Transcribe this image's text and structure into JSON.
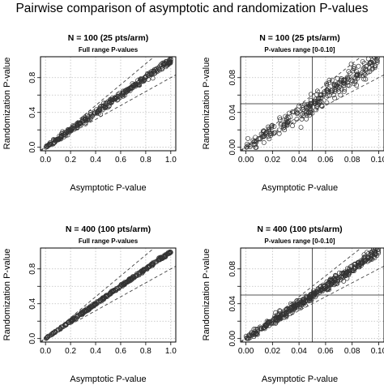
{
  "title": "Pairwise comparison of asymptotic and randomization P-values",
  "colors": {
    "points": "#333333",
    "grid": "#bdbdbd",
    "frame": "#000000",
    "reference_lines": "#444444"
  },
  "chart_data": [
    {
      "type": "scatter",
      "title": "N = 100 (25 pts/arm)",
      "subtitle": "Full range P-values",
      "xlabel": "Asymptotic P-value",
      "ylabel": "Randomization P-value",
      "xlim": [
        0,
        1.0
      ],
      "ylim": [
        0,
        1.0
      ],
      "xticks": [
        0.0,
        0.2,
        0.4,
        0.6,
        0.8,
        1.0
      ],
      "xtick_labels": [
        "0.0",
        "0.2",
        "0.4",
        "0.6",
        "0.8",
        "1.0"
      ],
      "yticks": [
        0.0,
        0.2,
        0.4,
        0.6,
        0.8
      ],
      "ytick_labels": [
        "0.0",
        "0.4",
        "0.8"
      ],
      "ytick_labeled": [
        0.0,
        0.4,
        0.8
      ],
      "grid": true,
      "reference_lines": {
        "bands": [
          [
            1.2,
            0
          ],
          [
            0.8,
            0
          ]
        ],
        "vline": null,
        "hline": null
      },
      "series": [
        {
          "x_range": [
            0,
            1.0
          ],
          "count": 320,
          "trend": 1.0,
          "spread": 0.018
        }
      ]
    },
    {
      "type": "scatter",
      "title": "N = 100 (25 pts/arm)",
      "subtitle": "P-values range [0-0.10]",
      "xlabel": "Asymptotic P-value",
      "ylabel": "Randomization P-value",
      "xlim": [
        0,
        0.1
      ],
      "ylim": [
        0,
        0.1
      ],
      "xticks": [
        0.0,
        0.02,
        0.04,
        0.06,
        0.08,
        0.1
      ],
      "xtick_labels": [
        "0.00",
        "0.02",
        "0.04",
        "0.06",
        "0.08",
        "0.10"
      ],
      "yticks": [
        0.0,
        0.02,
        0.04,
        0.06,
        0.08
      ],
      "ytick_labels": [
        "0.00",
        "0.04",
        "0.08"
      ],
      "ytick_labeled": [
        0.0,
        0.04,
        0.08
      ],
      "grid": true,
      "reference_lines": {
        "bands": [
          [
            1.2,
            0
          ],
          [
            0.8,
            0
          ]
        ],
        "vline": 0.05,
        "hline": 0.05
      },
      "series": [
        {
          "x_range": [
            0,
            0.1
          ],
          "count": 280,
          "trend": 1.0,
          "spread": 0.006
        }
      ]
    },
    {
      "type": "scatter",
      "title": "N = 400 (100 pts/arm)",
      "subtitle": "Full range P-values",
      "xlabel": "Asymptotic P-value",
      "ylabel": "Randomization P-value",
      "xlim": [
        0,
        1.0
      ],
      "ylim": [
        0,
        1.0
      ],
      "xticks": [
        0.0,
        0.2,
        0.4,
        0.6,
        0.8,
        1.0
      ],
      "xtick_labels": [
        "0.0",
        "0.2",
        "0.4",
        "0.6",
        "0.8",
        "1.0"
      ],
      "yticks": [
        0.0,
        0.2,
        0.4,
        0.6,
        0.8
      ],
      "ytick_labels": [
        "0.0",
        "0.4",
        "0.8"
      ],
      "ytick_labeled": [
        0.0,
        0.4,
        0.8
      ],
      "grid": true,
      "reference_lines": {
        "bands": [
          [
            1.2,
            0
          ],
          [
            0.8,
            0
          ]
        ],
        "vline": null,
        "hline": null
      },
      "series": [
        {
          "x_range": [
            0,
            1.0
          ],
          "count": 320,
          "trend": 1.0,
          "spread": 0.008
        }
      ]
    },
    {
      "type": "scatter",
      "title": "N = 400 (100 pts/arm)",
      "subtitle": "P-values range [0-0.10]",
      "xlabel": "Asymptotic P-value",
      "ylabel": "Randomization P-value",
      "xlim": [
        0,
        0.1
      ],
      "ylim": [
        0,
        0.1
      ],
      "xticks": [
        0.0,
        0.02,
        0.04,
        0.06,
        0.08,
        0.1
      ],
      "xtick_labels": [
        "0.00",
        "0.02",
        "0.04",
        "0.06",
        "0.08",
        "0.10"
      ],
      "yticks": [
        0.0,
        0.02,
        0.04,
        0.06,
        0.08
      ],
      "ytick_labels": [
        "0.00",
        "0.04",
        "0.08"
      ],
      "ytick_labeled": [
        0.0,
        0.04,
        0.08
      ],
      "grid": true,
      "reference_lines": {
        "bands": [
          [
            1.2,
            0
          ],
          [
            0.8,
            0
          ]
        ],
        "vline": 0.05,
        "hline": 0.05
      },
      "series": [
        {
          "x_range": [
            0,
            0.1
          ],
          "count": 420,
          "trend": 1.0,
          "spread": 0.003
        }
      ]
    }
  ]
}
